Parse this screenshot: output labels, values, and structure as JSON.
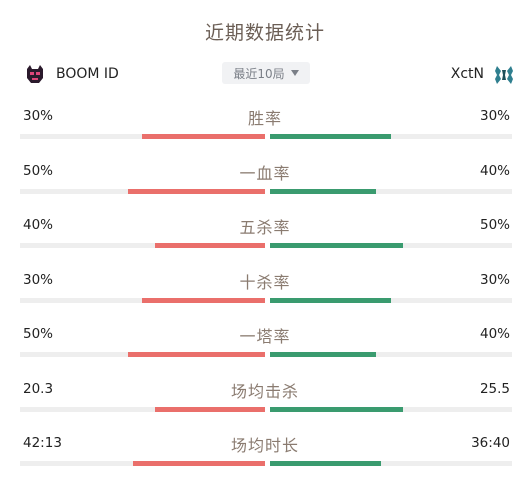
{
  "header": {
    "title": "近期数据统计"
  },
  "teams": {
    "left": {
      "name": "BOOM ID",
      "logo_icon": "boom-id-logo-icon"
    },
    "right": {
      "name": "XctN",
      "logo_icon": "xctn-logo-icon"
    }
  },
  "period_selector": {
    "label": "最近10局"
  },
  "colors": {
    "left_bar": "#ea6f6b",
    "right_bar": "#3a9b6f",
    "track": "#eeeeee"
  },
  "stats": [
    {
      "label": "胜率",
      "left": "30%",
      "right": "30%",
      "left_ratio": 0.5,
      "right_ratio": 0.5
    },
    {
      "label": "一血率",
      "left": "50%",
      "right": "40%",
      "left_ratio": 0.56,
      "right_ratio": 0.44
    },
    {
      "label": "五杀率",
      "left": "40%",
      "right": "50%",
      "left_ratio": 0.45,
      "right_ratio": 0.55
    },
    {
      "label": "十杀率",
      "left": "30%",
      "right": "30%",
      "left_ratio": 0.5,
      "right_ratio": 0.5
    },
    {
      "label": "一塔率",
      "left": "50%",
      "right": "40%",
      "left_ratio": 0.56,
      "right_ratio": 0.44
    },
    {
      "label": "场均击杀",
      "left": "20.3",
      "right": "25.5",
      "left_ratio": 0.45,
      "right_ratio": 0.55
    },
    {
      "label": "场均时长",
      "left": "42:13",
      "right": "36:40",
      "left_ratio": 0.54,
      "right_ratio": 0.46
    }
  ]
}
